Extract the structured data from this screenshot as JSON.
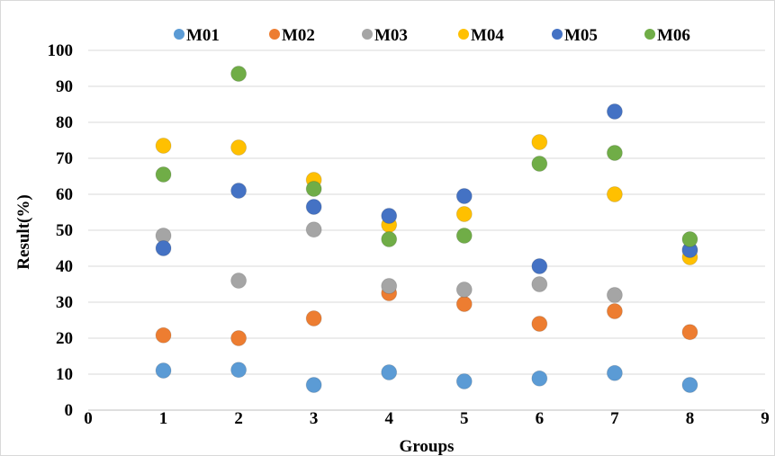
{
  "chart_data": {
    "type": "scatter",
    "title": "",
    "xlabel": "Groups",
    "ylabel": "Result(%)",
    "xlim": [
      0,
      9
    ],
    "ylim": [
      0,
      100
    ],
    "x_ticks": [
      0,
      1,
      2,
      3,
      4,
      5,
      6,
      7,
      8,
      9
    ],
    "y_ticks": [
      0,
      10,
      20,
      30,
      40,
      50,
      60,
      70,
      80,
      90,
      100
    ],
    "grid": "horizontal",
    "legend_position": "top",
    "x": [
      1,
      2,
      3,
      4,
      5,
      6,
      7,
      8
    ],
    "series": [
      {
        "name": "M01",
        "color": "#5b9bd5",
        "values": [
          11,
          11.2,
          7,
          10.5,
          8,
          8.8,
          10.3,
          7
        ]
      },
      {
        "name": "M02",
        "color": "#ed7d31",
        "values": [
          20.8,
          20,
          25.5,
          32.5,
          29.5,
          24,
          27.5,
          21.7
        ]
      },
      {
        "name": "M03",
        "color": "#a5a5a5",
        "values": [
          48.5,
          36,
          50.2,
          34.5,
          33.5,
          35,
          32,
          44.5
        ]
      },
      {
        "name": "M04",
        "color": "#ffc000",
        "values": [
          73.5,
          73,
          64,
          51.5,
          54.5,
          74.5,
          60,
          42.5
        ]
      },
      {
        "name": "M05",
        "color": "#4472c4",
        "values": [
          45,
          61,
          56.5,
          54,
          59.5,
          40,
          83,
          44.5
        ]
      },
      {
        "name": "M06",
        "color": "#70ad47",
        "values": [
          65.5,
          93.5,
          61.5,
          47.5,
          48.5,
          68.5,
          71.5,
          47.5
        ]
      }
    ]
  }
}
